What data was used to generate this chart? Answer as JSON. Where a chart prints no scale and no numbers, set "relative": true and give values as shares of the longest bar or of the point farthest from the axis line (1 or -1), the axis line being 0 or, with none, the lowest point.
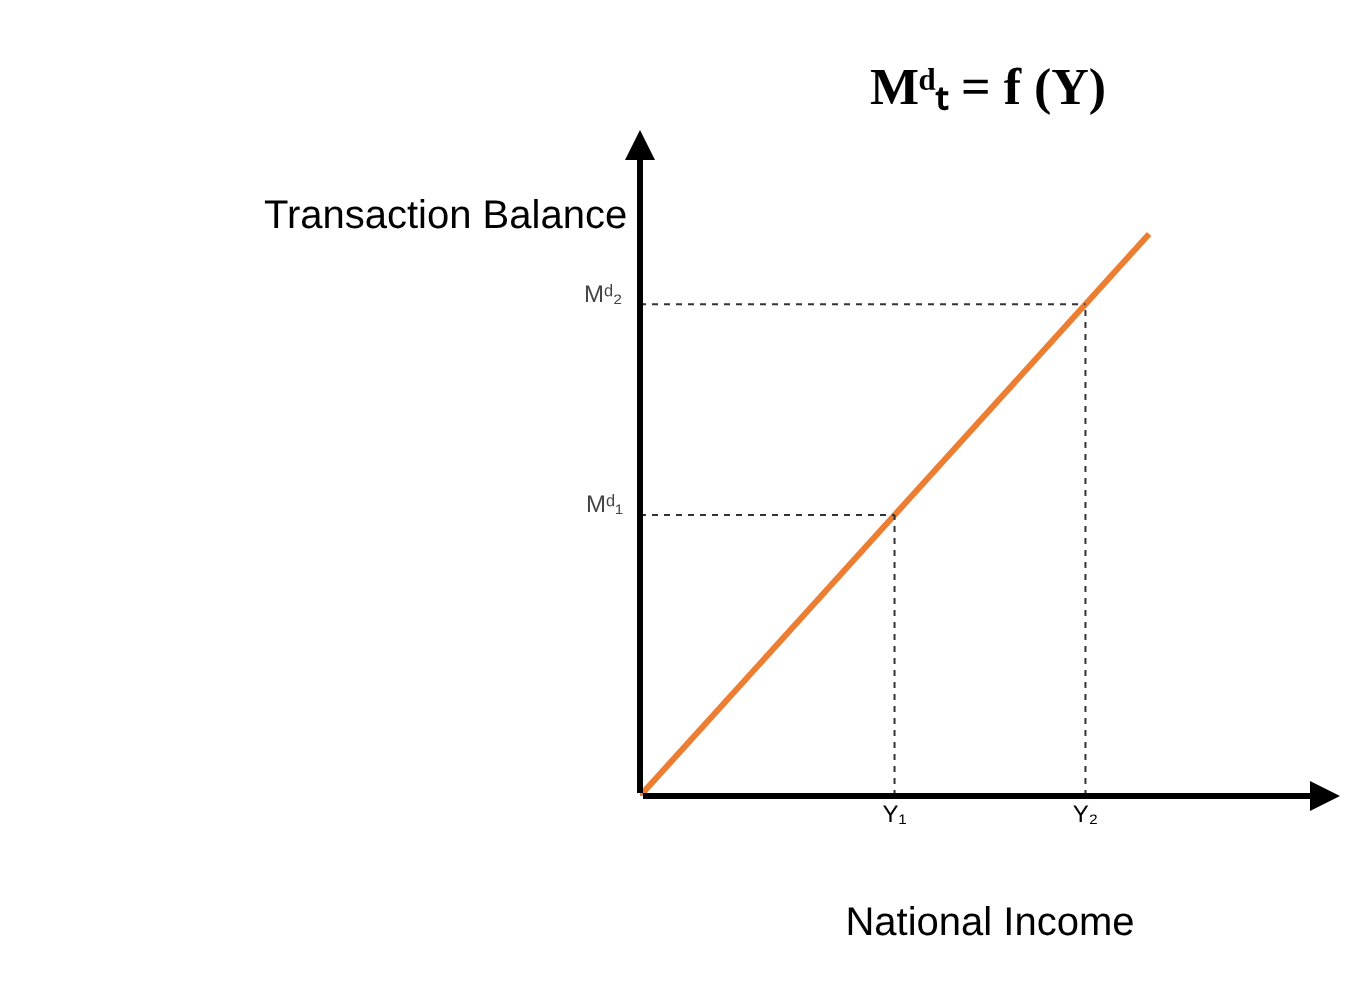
{
  "chart_data": {
    "type": "line",
    "title": "Mᵈₜ = f (Y)",
    "xlabel": "National Income",
    "ylabel": "Transaction Balance",
    "relative": true,
    "categories": [
      null,
      null,
      null,
      null,
      "Y₁",
      null,
      null,
      "Y₂",
      null,
      null,
      null,
      null
    ],
    "series": [
      {
        "color": "#ed7d31",
        "values": [
          0,
          0.125,
          0.25,
          0.375,
          0.5,
          0.625,
          0.75,
          0.875,
          1,
          null,
          null,
          null
        ]
      }
    ],
    "ref_lines": [
      {
        "axis": "x",
        "value": "Y₁",
        "label": null,
        "line_style": "dotted"
      },
      {
        "axis": "x",
        "value": "Y₂",
        "label": null,
        "line_style": "dotted"
      },
      {
        "axis": "y",
        "value": 0.5,
        "label": "Mᵈ₁",
        "line_style": "dotted"
      },
      {
        "axis": "y",
        "value": 0.875,
        "label": "Mᵈ₂",
        "line_style": "dotted"
      }
    ],
    "grid": false,
    "marker": "none",
    "line_style": "solid"
  }
}
